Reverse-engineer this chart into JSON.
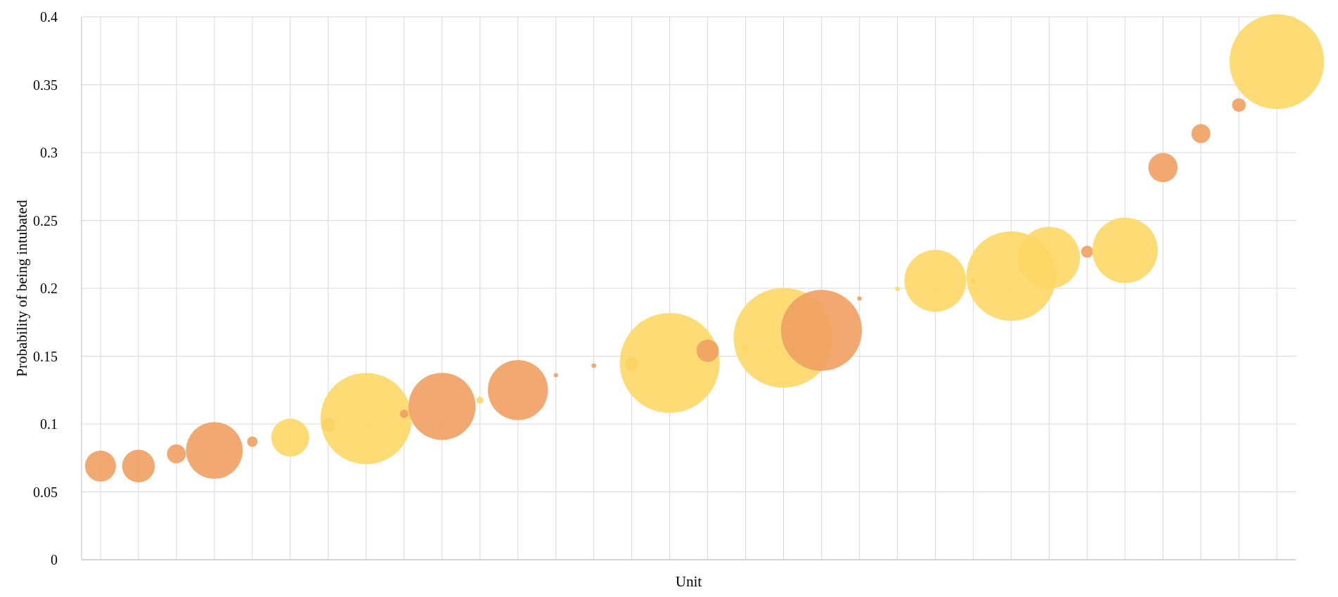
{
  "chart_data": {
    "type": "bubble",
    "xlabel": "Unit",
    "ylabel": "Probability of being intubated",
    "categories": [
      null,
      null,
      null,
      null,
      null,
      null,
      null,
      null,
      null,
      null,
      null,
      null,
      null,
      null,
      null,
      null,
      null,
      null,
      null,
      null,
      null,
      null,
      null,
      null,
      null,
      null,
      null,
      null,
      null,
      null,
      null,
      null
    ],
    "values": [
      0.069,
      0.069,
      0.078,
      0.0805,
      0.087,
      0.09,
      0.0995,
      0.104,
      0.1075,
      0.113,
      0.1175,
      0.125,
      0.136,
      0.143,
      0.144,
      0.145,
      0.154,
      0.156,
      0.1635,
      0.169,
      0.1925,
      0.1995,
      0.2055,
      0.2055,
      0.209,
      0.2225,
      0.227,
      0.228,
      0.289,
      0.314,
      0.335,
      0.367
    ],
    "sizes": [
      0.096,
      0.107,
      0.036,
      0.324,
      0.011,
      0.144,
      0.019,
      0.835,
      0.0074,
      0.452,
      0.0048,
      0.364,
      0.0019,
      0.0022,
      0.019,
      1,
      0.05,
      0.006,
      1,
      0.657,
      0.0019,
      0.0019,
      0.385,
      0.0019,
      0.804,
      0.385,
      0.0146,
      0.429,
      0.086,
      0.036,
      0.019,
      0.9
    ],
    "colors": [
      "#f0a062",
      "#f0a062",
      "#f0a062",
      "#f0a062",
      "#f0a062",
      "#fdd766",
      "#f0a062",
      "#fdd766",
      "#f0a062",
      "#f0a062",
      "#fdd766",
      "#f0a062",
      "#f0a062",
      "#f0a062",
      "#f0a062",
      "#fdd766",
      "#f0a062",
      "#fdd766",
      "#fdd766",
      "#f0a062",
      "#f0a062",
      "#fdd766",
      "#fdd766",
      "#f0a062",
      "#fdd766",
      "#fdd766",
      "#f0a062",
      "#fdd766",
      "#f0a062",
      "#f0a062",
      "#f0a062",
      "#fdd766"
    ],
    "ylim": [
      0,
      0.4
    ],
    "yticks": [
      0,
      0.05,
      0.1,
      0.15,
      0.2,
      0.25,
      0.3,
      0.35,
      0.4
    ],
    "grid": true
  }
}
